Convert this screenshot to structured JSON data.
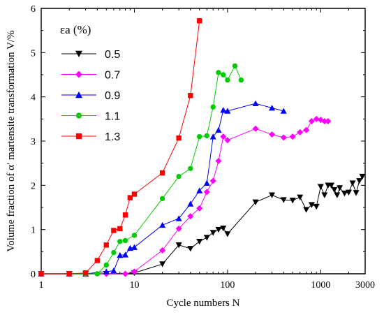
{
  "chart_data": {
    "type": "scatter",
    "title": "",
    "xlabel": "Cycle numbers N",
    "ylabel": "Volume fraction of α′ martensite transformation V/%",
    "xscale": "log",
    "xlim": [
      1,
      3000
    ],
    "ylim": [
      0,
      6
    ],
    "xticks": [
      1,
      10,
      100,
      1000,
      3000
    ],
    "xtick_labels": [
      "1",
      "10",
      "100",
      "1000",
      "3000"
    ],
    "yticks": [
      0,
      1,
      2,
      3,
      4,
      5,
      6
    ],
    "ytick_labels": [
      "0",
      "1",
      "2",
      "3",
      "4",
      "5",
      "6"
    ],
    "grid": false,
    "legend_title": "εa (%)",
    "legend_position": "top-left",
    "series": [
      {
        "name": "0.5",
        "color": "#000000",
        "marker": "triangle-down",
        "x": [
          1,
          2,
          3,
          5,
          10,
          20,
          30,
          40,
          50,
          60,
          70,
          80,
          90,
          100,
          200,
          300,
          400,
          500,
          600,
          700,
          800,
          900,
          1000,
          1100,
          1200,
          1300,
          1400,
          1500,
          1600,
          1800,
          2000,
          2200,
          2400,
          2600,
          2800
        ],
        "y": [
          0,
          0,
          0,
          0,
          0.02,
          0.22,
          0.65,
          0.57,
          0.73,
          0.82,
          0.93,
          1.0,
          1.03,
          0.9,
          1.62,
          1.78,
          1.67,
          1.66,
          1.73,
          1.45,
          1.56,
          1.52,
          1.97,
          1.78,
          2.0,
          2.0,
          1.9,
          1.78,
          1.94,
          1.82,
          1.84,
          2.05,
          1.83,
          2.1,
          2.2
        ]
      },
      {
        "name": "0.7",
        "color": "#ff00ff",
        "marker": "diamond",
        "x": [
          1,
          2,
          3,
          5,
          8,
          10,
          20,
          30,
          40,
          50,
          60,
          70,
          80,
          90,
          100,
          200,
          300,
          400,
          500,
          600,
          700,
          800,
          900,
          1000,
          1100,
          1200
        ],
        "y": [
          0,
          0,
          0,
          0,
          0,
          0.05,
          0.53,
          1.02,
          1.3,
          1.48,
          1.85,
          2.1,
          2.55,
          3.1,
          3.02,
          3.28,
          3.15,
          3.08,
          3.1,
          3.2,
          3.25,
          3.45,
          3.5,
          3.48,
          3.45,
          3.45
        ]
      },
      {
        "name": "0.9",
        "color": "#0000ff",
        "marker": "triangle-up",
        "x": [
          1,
          2,
          3,
          5,
          6,
          7,
          8,
          9,
          10,
          20,
          30,
          40,
          50,
          60,
          70,
          80,
          90,
          100,
          200,
          300,
          400
        ],
        "y": [
          0,
          0,
          0,
          0.05,
          0.07,
          0.42,
          0.43,
          0.58,
          0.6,
          1.1,
          1.25,
          1.58,
          1.88,
          2.05,
          3.1,
          3.25,
          3.7,
          3.68,
          3.85,
          3.75,
          3.68
        ]
      },
      {
        "name": "1.1",
        "color": "#00cc00",
        "marker": "circle",
        "x": [
          1,
          2,
          3,
          4,
          5,
          6,
          7,
          8,
          10,
          20,
          30,
          40,
          50,
          60,
          70,
          80,
          90,
          100,
          120,
          140
        ],
        "y": [
          0,
          0,
          0,
          0,
          0.2,
          0.48,
          0.73,
          0.75,
          0.87,
          1.7,
          2.2,
          2.38,
          3.1,
          3.12,
          3.77,
          4.55,
          4.5,
          4.38,
          4.7,
          4.38
        ]
      },
      {
        "name": "1.3",
        "color": "#ff0000",
        "marker": "square",
        "x": [
          1,
          2,
          3,
          4,
          5,
          6,
          7,
          8,
          9,
          10,
          20,
          30,
          40,
          50
        ],
        "y": [
          0,
          0,
          0.02,
          0.3,
          0.65,
          0.98,
          1.02,
          1.33,
          1.72,
          1.8,
          2.28,
          3.07,
          4.03,
          5.72
        ]
      }
    ]
  }
}
